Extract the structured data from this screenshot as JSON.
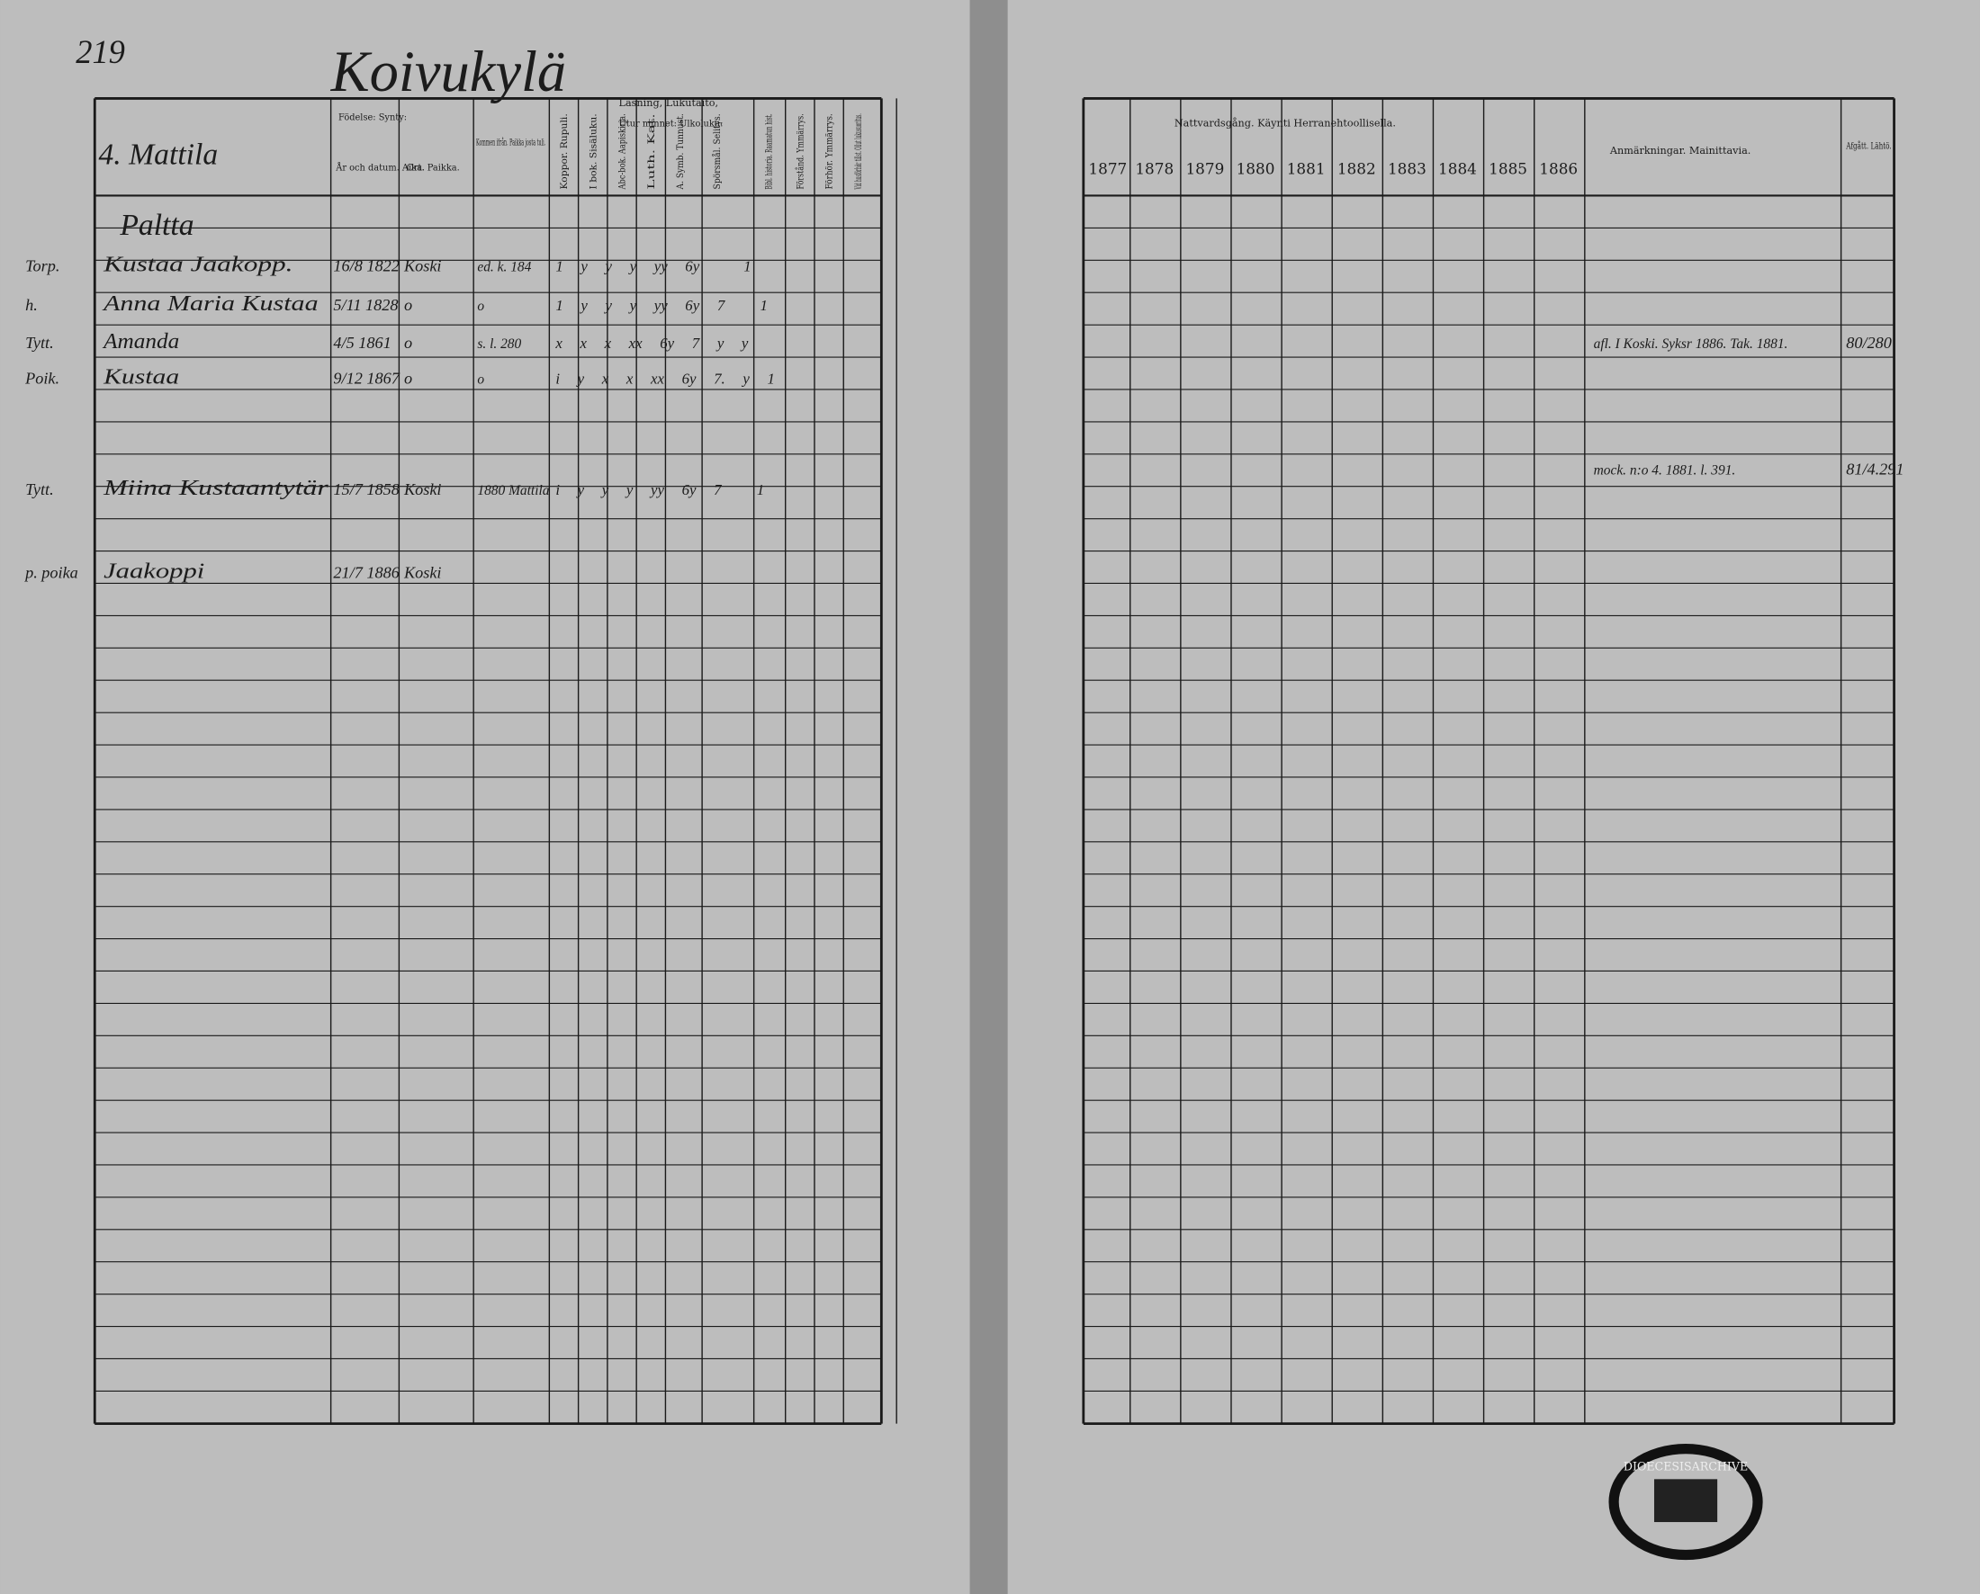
{
  "left_page": {
    "page_number": "219",
    "village": "Koivukylä",
    "house": "4. Mattila",
    "headers": {
      "birth": "Födelse: Synty:",
      "year_date": "År och datum. Aika.",
      "place": "Ort. Paikka.",
      "came_from": "Kommen ifrån. Paikka josta tuli.",
      "reading": "Läsning, Lukutaito,",
      "memory": "Utur minnet: Ulkoluku:",
      "columns": [
        "Koppor. Rupuli.",
        "I bok. Sisäluku.",
        "Abc-bok. Aapiskirja.",
        "Luth. Kat.",
        "A. Symb. Tunnust.",
        "Spörsmål. Selitys.",
        "Bibl. historia. Raamatun hist.",
        "Förstånd. Ymmärrys.",
        "Förhör. Ymmärrys.",
        "Vid husförhör tillst. Ollut lukusuoritus."
      ]
    },
    "farm": "Paltta",
    "rows": [
      {
        "role": "Torp.",
        "name": "Kustaa Jaakopp.",
        "date": "16/8 1822",
        "place": "Koski",
        "came_from": "ed. k. 184",
        "marks": "1  y  y  y  yy  6y     1"
      },
      {
        "role": "h.",
        "name": "Anna Maria Kustaa",
        "date": "5/11 1828",
        "place": "o",
        "came_from": "o",
        "marks": "1  y  y  y  yy  6y  7    1"
      },
      {
        "role": "Tytt.",
        "name": "Amanda",
        "date": "4/5 1861",
        "place": "o",
        "came_from": "s. l. 280",
        "marks": "x  x  x  xx  6y  7  y  y"
      },
      {
        "role": "Poik.",
        "name": "Kustaa",
        "date": "9/12 1867",
        "place": "o",
        "came_from": "o",
        "marks": "i  y  x  x  xx  6y  7.  y  1"
      },
      {
        "role": "Tytt.",
        "name": "Miina Kustaantytär",
        "date": "15/7 1858",
        "place": "Koski",
        "came_from": "1880 Mattila",
        "marks": "i  y  y  y  yy  6y  7    1"
      },
      {
        "role": "p. poika",
        "name": "Jaakoppi",
        "date": "21/7 1886",
        "place": "Koski",
        "came_from": "",
        "marks": ""
      }
    ]
  },
  "right_page": {
    "communion": "Nattvardsgång. Käynti Herranehtoollisella.",
    "years": [
      "1877",
      "1878",
      "1879",
      "1880",
      "1881",
      "1882",
      "1883",
      "1884",
      "1885",
      "1886"
    ],
    "remarks_header": "Anmärkningar. Mainittavia.",
    "departed_header": "Afgått. Lähtö.",
    "remarks": [
      {
        "text": "afl. I Koski. Syksr 1886. Tak. 1881.",
        "departed": "80/280"
      },
      {
        "text": "mock. n:o 4. 1881. l. 391.",
        "departed": "81/4.291"
      }
    ]
  },
  "stamp": "DIOECESISARCHIVE"
}
